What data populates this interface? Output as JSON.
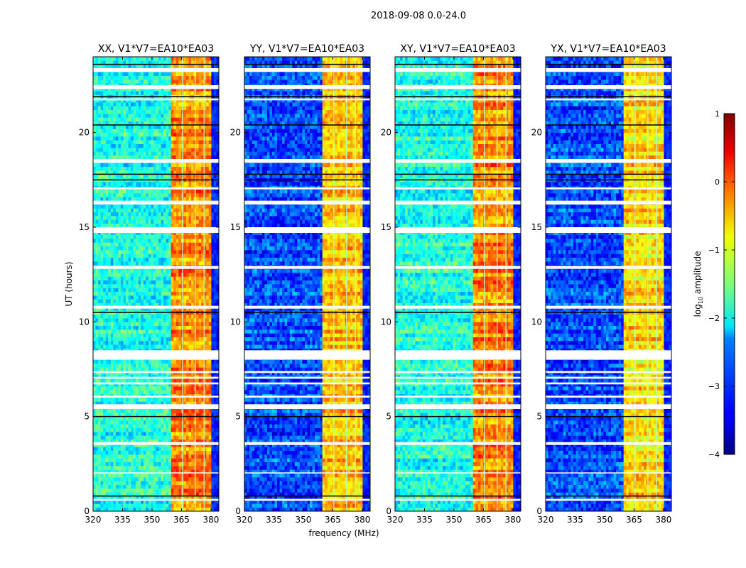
{
  "chart_data": {
    "type": "heatmap",
    "suptitle": "2018-09-08 0.0-24.0",
    "xlabel": "frequency (MHz)",
    "ylabel": "UT (hours)",
    "xlim": [
      320,
      384
    ],
    "ylim": [
      0,
      24
    ],
    "xticks": [
      "320",
      "335",
      "350",
      "365",
      "380"
    ],
    "xtick_values": [
      320,
      335,
      350,
      365,
      380
    ],
    "yticks": [
      "0",
      "5",
      "10",
      "15",
      "20"
    ],
    "ytick_values": [
      0,
      5,
      10,
      15,
      20
    ],
    "panels": [
      {
        "title": "XX, V1*V7=EA10*EA03",
        "background_level": -2.0,
        "band_level": -0.3
      },
      {
        "title": "YY, V1*V7=EA10*EA03",
        "background_level": -3.0,
        "band_level": -0.6
      },
      {
        "title": "XY, V1*V7=EA10*EA03",
        "background_level": -2.0,
        "band_level": -0.3
      },
      {
        "title": "YX, V1*V7=EA10*EA03",
        "background_level": -3.0,
        "band_level": -0.7
      }
    ],
    "band_mhz": [
      360,
      380
    ],
    "band_gap_lines_mhz": [
      365.5,
      372,
      376.5
    ],
    "flagged_hours": [
      [
        23.2,
        23.4
      ],
      [
        22.3,
        22.5
      ],
      [
        21.7,
        21.8
      ],
      [
        18.4,
        18.6
      ],
      [
        17.0,
        17.1
      ],
      [
        16.2,
        16.4
      ],
      [
        14.7,
        15.0
      ],
      [
        12.8,
        12.95
      ],
      [
        10.7,
        10.85
      ],
      [
        8.0,
        8.5
      ],
      [
        7.3,
        7.4
      ],
      [
        7.0,
        7.1
      ],
      [
        6.7,
        6.8
      ],
      [
        6.0,
        6.1
      ],
      [
        5.4,
        5.65
      ],
      [
        3.5,
        3.65
      ],
      [
        2.0,
        2.05
      ],
      [
        0.55,
        0.65
      ]
    ],
    "black_line_hours": [
      23.6,
      21.9,
      20.4,
      17.8,
      17.5,
      10.5,
      5.0,
      0.8
    ],
    "colorbar": {
      "label": "log10 amplitude",
      "label_main": "log",
      "label_sub": "10",
      "label_rest": " amplitude",
      "range": [
        -4,
        1
      ],
      "ticks": [
        "−4",
        "−3",
        "−2",
        "−1",
        "0",
        "1"
      ],
      "tick_values": [
        -4,
        -3,
        -2,
        -1,
        0,
        1
      ]
    }
  }
}
